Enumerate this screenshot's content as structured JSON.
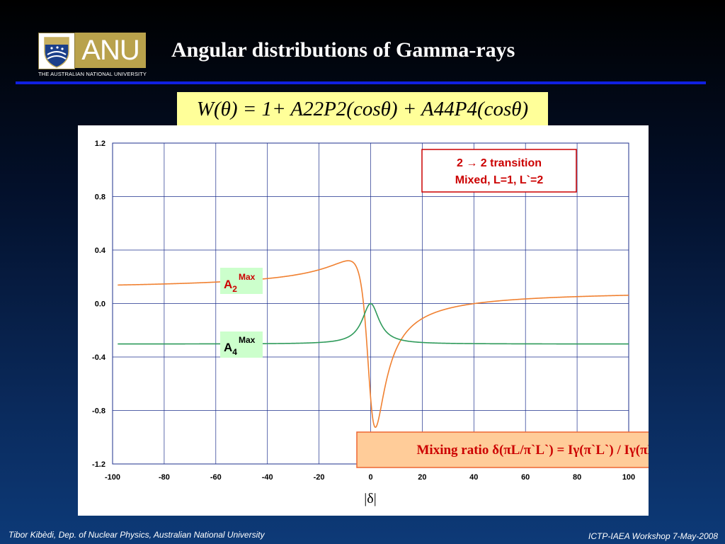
{
  "header": {
    "title": "Angular distributions of Gamma-rays",
    "logo_text": "ANU",
    "logo_subtitle": "THE AUSTRALIAN NATIONAL UNIVERSITY",
    "formula": "W(θ) = 1+ A22P2(cosθ) + A44P4(cosθ)"
  },
  "footer": {
    "left": "Tibor Kibèdi, Dep. of Nuclear Physics, Australian National University",
    "right": "ICTP-IAEA Workshop 7-May-2008"
  },
  "colors": {
    "a2_series": "#f08030",
    "a4_series": "#2e9a5a",
    "annotation_red": "#cc0000",
    "label_bg_green": "#ccffcc",
    "mixing_bg": "#ffcc99",
    "formula_bg": "#ffff99"
  },
  "chart_data": {
    "type": "line",
    "xlabel": "|δ|",
    "ylabel": "",
    "xlim": [
      -100,
      100
    ],
    "ylim": [
      -1.2,
      1.2
    ],
    "x_ticks": [
      -100,
      -80,
      -60,
      -40,
      -20,
      0,
      20,
      40,
      60,
      80,
      100
    ],
    "y_ticks": [
      "1.2",
      "0.8",
      "0.4",
      "0.0",
      "-0.4",
      "-0.8",
      "-1.2"
    ],
    "grid": true,
    "series": [
      {
        "name": "A2Max",
        "label_main": "A",
        "label_sub": "2",
        "label_sup": "Max",
        "color": "#f08030",
        "model": "A2",
        "asymptote": 0.14
      },
      {
        "name": "A4Max",
        "label_main": "A",
        "label_sub": "4",
        "label_sup": "Max",
        "color": "#2e9a5a",
        "model": "A4",
        "asymptote": -0.3
      }
    ],
    "annotations": {
      "transition_line1": "2 → 2 transition",
      "transition_line2": "Mixed, L=1, L`=2",
      "mixing_ratio": "Mixing ratio δ(πL/π`L`) = Iγ(π`L`) / Iγ(πL)"
    }
  }
}
